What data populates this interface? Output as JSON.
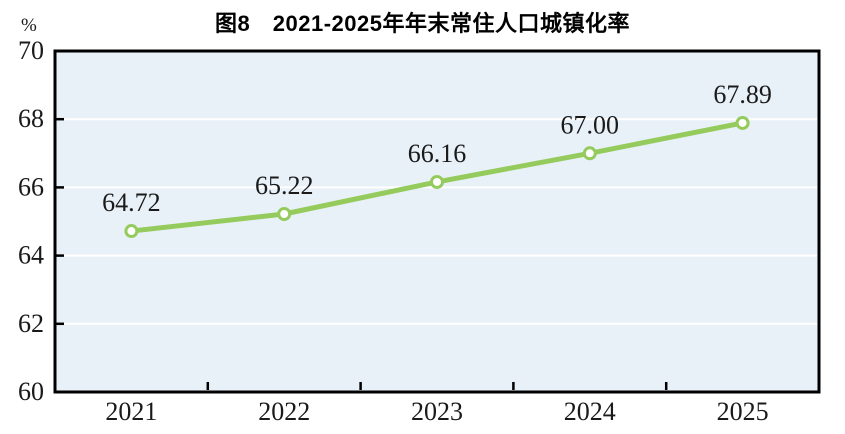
{
  "chart_data": {
    "type": "line",
    "title": "图8　2021-2025年年末常住人口城镇化率",
    "ylabel": "%",
    "xlabel": "",
    "categories": [
      "2021",
      "2022",
      "2023",
      "2024",
      "2025"
    ],
    "series": [
      {
        "values": [
          64.72,
          65.22,
          66.16,
          67.0,
          67.89
        ]
      }
    ],
    "data_labels": [
      "64.72",
      "65.22",
      "66.16",
      "67.00",
      "67.89"
    ],
    "ylim": [
      60,
      70
    ],
    "y_ticks": [
      60,
      62,
      64,
      66,
      68,
      70
    ],
    "grid": "horizontal",
    "legend": "none",
    "colors": {
      "line": "#94CB5C",
      "marker_fill": "#FFFFFF",
      "plot_bg": "#E9F1F8",
      "gridline": "#FFFFFF",
      "axis": "#000000",
      "text": "#1A1A1A",
      "page_bg": "#FFFFFF"
    }
  }
}
